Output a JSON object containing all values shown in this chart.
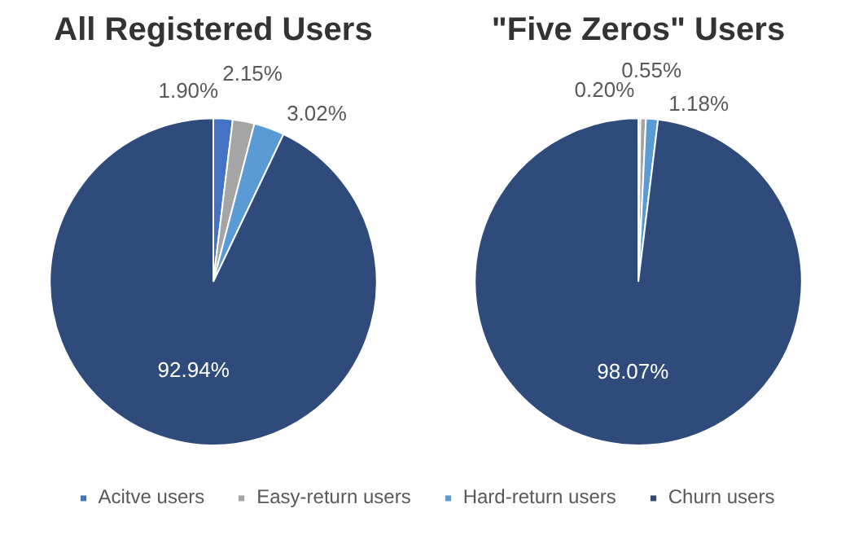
{
  "chart_data": [
    {
      "type": "pie",
      "title": "All Registered Users",
      "categories": [
        "Acitve users",
        "Easy-return users",
        "Hard-return users",
        "Churn users"
      ],
      "values": [
        1.9,
        2.15,
        3.02,
        92.94
      ],
      "value_labels": [
        "1.90%",
        "2.15%",
        "3.02%",
        "92.94%"
      ],
      "colors": [
        "#4472c4",
        "#a5a5a5",
        "#5b9bd5",
        "#2f4b7c"
      ],
      "legend": "bottom"
    },
    {
      "type": "pie",
      "title": "\"Five Zeros\" Users",
      "categories": [
        null,
        null,
        null,
        null
      ],
      "values": [
        0.2,
        0.55,
        1.18,
        98.07
      ],
      "value_labels": [
        "0.20%",
        "0.55%",
        "1.18%",
        "98.07%"
      ],
      "colors": [
        "#4472c4",
        "#a5a5a5",
        "#5b9bd5",
        "#2f4b7c"
      ]
    }
  ]
}
